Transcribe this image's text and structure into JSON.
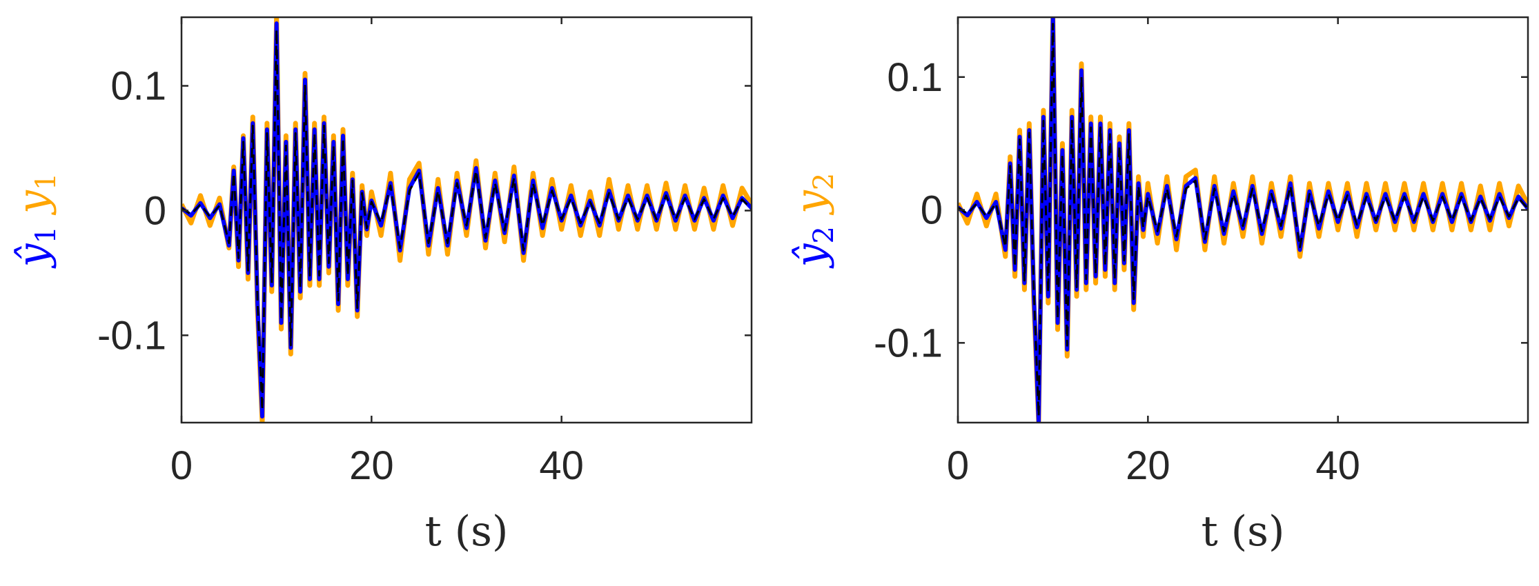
{
  "colors": {
    "measured": "#FFA500",
    "estimate": "#0000FF",
    "reference": "#000000",
    "axis": "#262626"
  },
  "chart_data": [
    {
      "type": "line",
      "title": "",
      "xlabel": "t (s)",
      "ylabel": {
        "estimate": "ŷ",
        "estimate_sub": "1",
        "measured": "y",
        "measured_sub": "1"
      },
      "xlim": [
        0,
        60
      ],
      "ylim": [
        -0.17,
        0.155
      ],
      "xticks": [
        0,
        20,
        40
      ],
      "xtick_labels": [
        "0",
        "20",
        "40"
      ],
      "yticks": [
        -0.1,
        0,
        0.1
      ],
      "ytick_labels": [
        "-0.1",
        "0",
        "0.1"
      ],
      "grid": false,
      "legend": "none",
      "series": [
        {
          "role": "measured",
          "color": "#FFA500",
          "style": "solid",
          "x": [
            0,
            1,
            2,
            3,
            4,
            5,
            5.5,
            6,
            6.5,
            7,
            7.5,
            8,
            8.5,
            9,
            9.5,
            10,
            10.5,
            11,
            11.5,
            12,
            12.5,
            13,
            13.5,
            14,
            14.5,
            15,
            15.5,
            16,
            16.5,
            17,
            17.5,
            18,
            18.5,
            19,
            19.5,
            20,
            21,
            22,
            23,
            24,
            25,
            26,
            27,
            28,
            29,
            30,
            31,
            32,
            33,
            34,
            35,
            36,
            37,
            38,
            39,
            40,
            41,
            42,
            43,
            44,
            45,
            46,
            47,
            48,
            49,
            50,
            51,
            52,
            53,
            54,
            55,
            56,
            57,
            58,
            59,
            60
          ],
          "y": [
            0.005,
            -0.01,
            0.012,
            -0.012,
            0.01,
            -0.03,
            0.035,
            -0.045,
            0.06,
            -0.055,
            0.075,
            -0.08,
            -0.17,
            0.07,
            -0.065,
            0.155,
            -0.095,
            0.06,
            -0.115,
            0.07,
            -0.07,
            0.11,
            -0.06,
            0.07,
            -0.06,
            0.075,
            -0.05,
            0.06,
            -0.08,
            0.065,
            -0.06,
            0.03,
            -0.085,
            0.02,
            -0.02,
            0.015,
            -0.02,
            0.03,
            -0.04,
            0.025,
            0.038,
            -0.035,
            0.025,
            -0.035,
            0.03,
            -0.02,
            0.04,
            -0.03,
            0.03,
            -0.025,
            0.035,
            -0.04,
            0.03,
            -0.02,
            0.025,
            -0.015,
            0.02,
            -0.02,
            0.015,
            -0.02,
            0.025,
            -0.015,
            0.02,
            -0.015,
            0.02,
            -0.015,
            0.022,
            -0.015,
            0.02,
            -0.015,
            0.018,
            -0.015,
            0.02,
            -0.012,
            0.018,
            0.005
          ]
        },
        {
          "role": "estimate",
          "color": "#0000FF",
          "style": "solid",
          "x": [
            0,
            1,
            2,
            3,
            4,
            5,
            5.5,
            6,
            6.5,
            7,
            7.5,
            8,
            8.5,
            9,
            9.5,
            10,
            10.5,
            11,
            11.5,
            12,
            12.5,
            13,
            13.5,
            14,
            14.5,
            15,
            15.5,
            16,
            16.5,
            17,
            17.5,
            18,
            18.5,
            19,
            19.5,
            20,
            21,
            22,
            23,
            24,
            25,
            26,
            27,
            28,
            29,
            30,
            31,
            32,
            33,
            34,
            35,
            36,
            37,
            38,
            39,
            40,
            41,
            42,
            43,
            44,
            45,
            46,
            47,
            48,
            49,
            50,
            51,
            52,
            53,
            54,
            55,
            56,
            57,
            58,
            59,
            60
          ],
          "y": [
            0.002,
            -0.004,
            0.006,
            -0.006,
            0.005,
            -0.028,
            0.032,
            -0.04,
            0.058,
            -0.05,
            0.07,
            -0.075,
            -0.165,
            0.065,
            -0.06,
            0.15,
            -0.09,
            0.055,
            -0.11,
            0.065,
            -0.065,
            0.105,
            -0.055,
            0.065,
            -0.055,
            0.07,
            -0.045,
            0.055,
            -0.075,
            0.06,
            -0.055,
            0.025,
            -0.08,
            0.015,
            -0.015,
            0.008,
            -0.012,
            0.022,
            -0.032,
            0.018,
            0.032,
            -0.028,
            0.018,
            -0.028,
            0.024,
            -0.014,
            0.034,
            -0.024,
            0.024,
            -0.018,
            0.028,
            -0.034,
            0.024,
            -0.014,
            0.018,
            -0.008,
            0.012,
            -0.012,
            0.008,
            -0.012,
            0.016,
            -0.008,
            0.012,
            -0.008,
            0.012,
            -0.008,
            0.014,
            -0.008,
            0.012,
            -0.008,
            0.01,
            -0.008,
            0.012,
            -0.006,
            0.01,
            0.002
          ]
        },
        {
          "role": "reference",
          "color": "#000000",
          "style": "dashed",
          "x": [
            0,
            1,
            2,
            3,
            4,
            5,
            5.5,
            6,
            6.5,
            7,
            7.5,
            8,
            8.5,
            9,
            9.5,
            10,
            10.5,
            11,
            11.5,
            12,
            12.5,
            13,
            13.5,
            14,
            14.5,
            15,
            15.5,
            16,
            16.5,
            17,
            17.5,
            18,
            18.5,
            19,
            19.5,
            20,
            21,
            22,
            23,
            24,
            25,
            26,
            27,
            28,
            29,
            30,
            31,
            32,
            33,
            34,
            35,
            36,
            37,
            38,
            39,
            40,
            41,
            42,
            43,
            44,
            45,
            46,
            47,
            48,
            49,
            50,
            51,
            52,
            53,
            54,
            55,
            56,
            57,
            58,
            59,
            60
          ],
          "y": [
            0.002,
            -0.003,
            0.005,
            -0.005,
            0.004,
            -0.026,
            0.03,
            -0.038,
            0.055,
            -0.048,
            0.068,
            -0.072,
            -0.16,
            0.062,
            -0.058,
            0.145,
            -0.088,
            0.052,
            -0.108,
            0.062,
            -0.062,
            0.1,
            -0.052,
            0.062,
            -0.052,
            0.068,
            -0.042,
            0.052,
            -0.072,
            0.058,
            -0.052,
            0.024,
            -0.078,
            0.014,
            -0.014,
            0.007,
            -0.01,
            0.02,
            -0.03,
            0.016,
            0.03,
            -0.026,
            0.016,
            -0.026,
            0.022,
            -0.012,
            0.032,
            -0.022,
            0.022,
            -0.016,
            0.026,
            -0.032,
            0.022,
            -0.012,
            0.016,
            -0.007,
            0.01,
            -0.01,
            0.007,
            -0.01,
            0.014,
            -0.007,
            0.01,
            -0.007,
            0.01,
            -0.007,
            0.012,
            -0.007,
            0.01,
            -0.007,
            0.009,
            -0.007,
            0.01,
            -0.005,
            0.009,
            0.001
          ]
        }
      ]
    },
    {
      "type": "line",
      "title": "",
      "xlabel": "t (s)",
      "ylabel": {
        "estimate": "ŷ",
        "estimate_sub": "2",
        "measured": "y",
        "measured_sub": "2"
      },
      "xlim": [
        0,
        60
      ],
      "ylim": [
        -0.16,
        0.145
      ],
      "xticks": [
        0,
        20,
        40
      ],
      "xtick_labels": [
        "0",
        "20",
        "40"
      ],
      "yticks": [
        -0.1,
        0,
        0.1
      ],
      "ytick_labels": [
        "-0.1",
        "0",
        "0.1"
      ],
      "grid": false,
      "legend": "none",
      "series": [
        {
          "role": "measured",
          "color": "#FFA500",
          "style": "solid",
          "x": [
            0,
            1,
            2,
            3,
            4,
            5,
            5.5,
            6,
            6.5,
            7,
            7.5,
            8,
            8.5,
            9,
            9.5,
            10,
            10.5,
            11,
            11.5,
            12,
            12.5,
            13,
            13.5,
            14,
            14.5,
            15,
            15.5,
            16,
            16.5,
            17,
            17.5,
            18,
            18.5,
            19,
            19.5,
            20,
            21,
            22,
            23,
            24,
            25,
            26,
            27,
            28,
            29,
            30,
            31,
            32,
            33,
            34,
            35,
            36,
            37,
            38,
            39,
            40,
            41,
            42,
            43,
            44,
            45,
            46,
            47,
            48,
            49,
            50,
            51,
            52,
            53,
            54,
            55,
            56,
            57,
            58,
            59,
            60
          ],
          "y": [
            0.005,
            -0.01,
            0.012,
            -0.012,
            0.012,
            -0.035,
            0.04,
            -0.05,
            0.06,
            -0.06,
            0.065,
            -0.07,
            -0.16,
            0.075,
            -0.07,
            0.145,
            -0.09,
            0.05,
            -0.11,
            0.075,
            -0.065,
            0.11,
            -0.06,
            0.07,
            -0.055,
            0.07,
            -0.05,
            0.065,
            -0.06,
            0.055,
            -0.045,
            0.065,
            -0.075,
            0.025,
            -0.02,
            0.02,
            -0.025,
            0.025,
            -0.03,
            0.025,
            0.03,
            -0.03,
            0.025,
            -0.025,
            0.02,
            -0.02,
            0.025,
            -0.025,
            0.02,
            -0.02,
            0.025,
            -0.035,
            0.02,
            -0.02,
            0.02,
            -0.015,
            0.02,
            -0.02,
            0.02,
            -0.015,
            0.02,
            -0.015,
            0.02,
            -0.015,
            0.02,
            -0.015,
            0.02,
            -0.015,
            0.02,
            -0.015,
            0.018,
            -0.015,
            0.02,
            -0.012,
            0.018,
            0.004
          ]
        },
        {
          "role": "estimate",
          "color": "#0000FF",
          "style": "solid",
          "x": [
            0,
            1,
            2,
            3,
            4,
            5,
            5.5,
            6,
            6.5,
            7,
            7.5,
            8,
            8.5,
            9,
            9.5,
            10,
            10.5,
            11,
            11.5,
            12,
            12.5,
            13,
            13.5,
            14,
            14.5,
            15,
            15.5,
            16,
            16.5,
            17,
            17.5,
            18,
            18.5,
            19,
            19.5,
            20,
            21,
            22,
            23,
            24,
            25,
            26,
            27,
            28,
            29,
            30,
            31,
            32,
            33,
            34,
            35,
            36,
            37,
            38,
            39,
            40,
            41,
            42,
            43,
            44,
            45,
            46,
            47,
            48,
            49,
            50,
            51,
            52,
            53,
            54,
            55,
            56,
            57,
            58,
            59,
            60
          ],
          "y": [
            0.002,
            -0.004,
            0.006,
            -0.006,
            0.006,
            -0.03,
            0.035,
            -0.045,
            0.055,
            -0.055,
            0.06,
            -0.065,
            -0.16,
            0.07,
            -0.065,
            0.145,
            -0.085,
            0.045,
            -0.105,
            0.07,
            -0.06,
            0.105,
            -0.055,
            0.065,
            -0.05,
            0.065,
            -0.045,
            0.06,
            -0.055,
            0.05,
            -0.04,
            0.06,
            -0.07,
            0.02,
            -0.015,
            0.012,
            -0.018,
            0.018,
            -0.022,
            0.018,
            0.024,
            -0.024,
            0.018,
            -0.018,
            0.014,
            -0.014,
            0.018,
            -0.018,
            0.014,
            -0.014,
            0.02,
            -0.03,
            0.014,
            -0.014,
            0.014,
            -0.009,
            0.013,
            -0.013,
            0.012,
            -0.009,
            0.012,
            -0.009,
            0.012,
            -0.009,
            0.012,
            -0.009,
            0.012,
            -0.009,
            0.012,
            -0.009,
            0.01,
            -0.008,
            0.012,
            -0.006,
            0.01,
            0.001
          ]
        },
        {
          "role": "reference",
          "color": "#000000",
          "style": "dashed",
          "x": [
            0,
            1,
            2,
            3,
            4,
            5,
            5.5,
            6,
            6.5,
            7,
            7.5,
            8,
            8.5,
            9,
            9.5,
            10,
            10.5,
            11,
            11.5,
            12,
            12.5,
            13,
            13.5,
            14,
            14.5,
            15,
            15.5,
            16,
            16.5,
            17,
            17.5,
            18,
            18.5,
            19,
            19.5,
            20,
            21,
            22,
            23,
            24,
            25,
            26,
            27,
            28,
            29,
            30,
            31,
            32,
            33,
            34,
            35,
            36,
            37,
            38,
            39,
            40,
            41,
            42,
            43,
            44,
            45,
            46,
            47,
            48,
            49,
            50,
            51,
            52,
            53,
            54,
            55,
            56,
            57,
            58,
            59,
            60
          ],
          "y": [
            0.002,
            -0.003,
            0.005,
            -0.005,
            0.005,
            -0.028,
            0.033,
            -0.043,
            0.053,
            -0.053,
            0.058,
            -0.062,
            -0.155,
            0.067,
            -0.062,
            0.14,
            -0.082,
            0.042,
            -0.102,
            0.067,
            -0.058,
            0.1,
            -0.052,
            0.062,
            -0.048,
            0.062,
            -0.042,
            0.057,
            -0.052,
            0.048,
            -0.038,
            0.057,
            -0.067,
            0.018,
            -0.013,
            0.01,
            -0.016,
            0.016,
            -0.02,
            0.016,
            0.022,
            -0.022,
            0.016,
            -0.016,
            0.012,
            -0.012,
            0.016,
            -0.016,
            0.012,
            -0.012,
            0.018,
            -0.028,
            0.012,
            -0.012,
            0.012,
            -0.008,
            0.011,
            -0.011,
            0.01,
            -0.008,
            0.01,
            -0.008,
            0.01,
            -0.008,
            0.01,
            -0.008,
            0.01,
            -0.008,
            0.01,
            -0.008,
            0.009,
            -0.007,
            0.01,
            -0.005,
            0.009,
            0.001
          ]
        }
      ]
    }
  ]
}
